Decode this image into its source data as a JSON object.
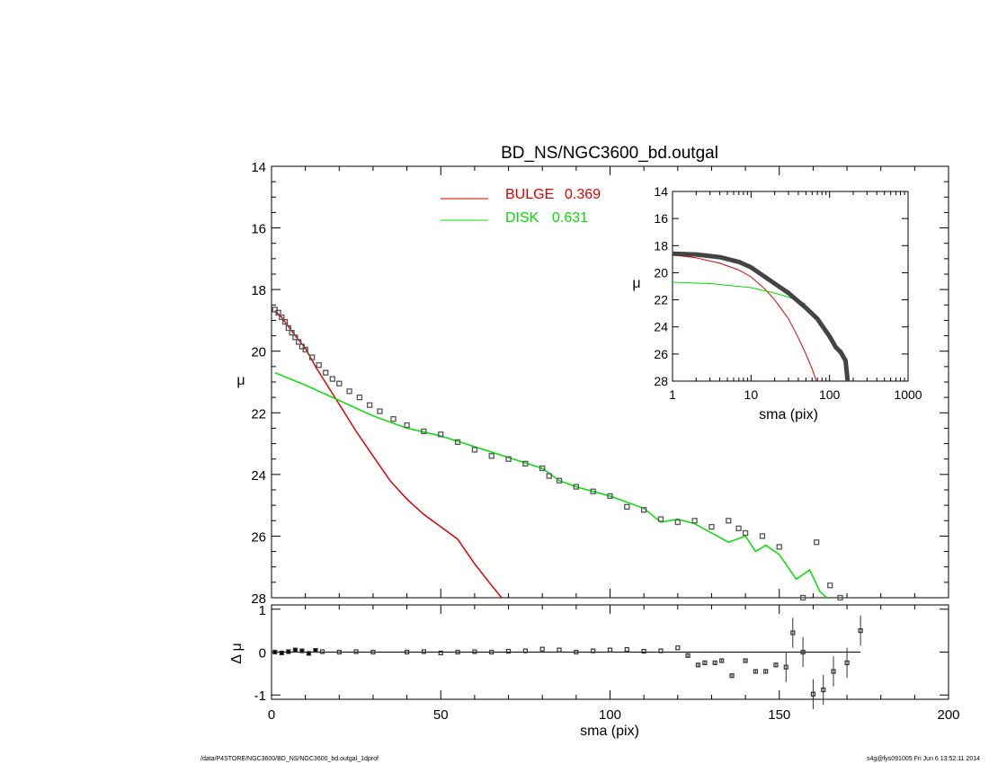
{
  "chart_data": [
    {
      "type": "line",
      "title": "BD_NS/NGC3600_bd.outgal",
      "xlabel": "",
      "ylabel": "μ",
      "xlim": [
        0,
        200
      ],
      "ylim": [
        28,
        14
      ],
      "yticks": [
        "14",
        "16",
        "18",
        "20",
        "22",
        "24",
        "26",
        "28"
      ],
      "legend": [
        {
          "label": "BULGE",
          "value": "0.369",
          "color": "#e00000"
        },
        {
          "label": "DISK",
          "value": "0.631",
          "color": "#00e000"
        }
      ],
      "series": [
        {
          "name": "BULGE",
          "color": "#e00000",
          "x": [
            1,
            3,
            5,
            7,
            10,
            13,
            17,
            21,
            25,
            30,
            35,
            40,
            45,
            50,
            55,
            60,
            65,
            68
          ],
          "y": [
            18.7,
            18.9,
            19.2,
            19.5,
            19.9,
            20.5,
            21.2,
            21.9,
            22.6,
            23.4,
            24.2,
            24.8,
            25.3,
            25.7,
            26.1,
            26.9,
            27.6,
            28.0
          ]
        },
        {
          "name": "DISK",
          "color": "#00e000",
          "x": [
            1,
            10,
            20,
            30,
            40,
            50,
            60,
            70,
            80,
            85,
            90,
            100,
            110,
            115,
            120,
            125,
            130,
            135,
            140,
            143,
            146,
            150,
            155,
            159,
            162,
            164
          ],
          "y": [
            20.7,
            21.1,
            21.6,
            22.1,
            22.5,
            22.75,
            23.1,
            23.45,
            23.8,
            24.2,
            24.4,
            24.7,
            25.1,
            25.55,
            25.45,
            25.6,
            25.9,
            26.2,
            26.0,
            26.5,
            26.3,
            26.6,
            27.4,
            27.1,
            27.8,
            28.0
          ]
        },
        {
          "name": "",
          "type": "scatter",
          "color": "#555555",
          "x": [
            1,
            2,
            3,
            4,
            5,
            6,
            7,
            8,
            9,
            10,
            12,
            14,
            16,
            18,
            20,
            23,
            26,
            29,
            32,
            36,
            40,
            45,
            50,
            55,
            60,
            65,
            70,
            75,
            80,
            82,
            85,
            90,
            95,
            100,
            105,
            110,
            115,
            120,
            125,
            130,
            135,
            138,
            140,
            145,
            150,
            157,
            161,
            165,
            168
          ],
          "y": [
            18.65,
            18.75,
            18.9,
            19.05,
            19.25,
            19.4,
            19.55,
            19.7,
            19.85,
            19.95,
            20.2,
            20.45,
            20.7,
            20.9,
            21.05,
            21.3,
            21.5,
            21.75,
            21.95,
            22.2,
            22.4,
            22.6,
            22.7,
            22.95,
            23.2,
            23.4,
            23.5,
            23.65,
            23.8,
            24.05,
            24.2,
            24.4,
            24.55,
            24.7,
            25.05,
            25.15,
            25.45,
            25.55,
            25.5,
            25.7,
            25.5,
            25.75,
            25.9,
            26.0,
            26.35,
            28.0,
            26.2,
            27.6,
            28.0
          ]
        }
      ]
    },
    {
      "type": "line",
      "xlabel": "",
      "ylabel": "μ",
      "xscale": "log",
      "xlim": [
        1,
        1000
      ],
      "ylim": [
        28,
        14
      ],
      "xticks": [
        "1",
        "10",
        "100",
        "1000"
      ],
      "yticks": [
        "14",
        "16",
        "18",
        "20",
        "22",
        "24",
        "26",
        "28"
      ],
      "series": [
        {
          "name": "BULGE",
          "color": "#e00000",
          "x": [
            1,
            2,
            4,
            7,
            10,
            15,
            20,
            30,
            40,
            50,
            60,
            68
          ],
          "y": [
            18.7,
            18.9,
            19.3,
            19.8,
            20.3,
            21.2,
            22.0,
            23.4,
            24.8,
            26.0,
            27.1,
            28.0
          ]
        },
        {
          "name": "DISK",
          "color": "#00e000",
          "x": [
            1,
            3,
            10,
            20,
            30,
            40,
            50
          ],
          "y": [
            20.7,
            20.8,
            21.1,
            21.5,
            21.8,
            22.1,
            22.3
          ]
        },
        {
          "name": "",
          "color": "#444444",
          "x": [
            1,
            2,
            4,
            7,
            10,
            15,
            20,
            30,
            50,
            70,
            100,
            120,
            140,
            160,
            170
          ],
          "y": [
            18.6,
            18.65,
            18.85,
            19.2,
            19.6,
            20.3,
            20.8,
            21.5,
            22.6,
            23.4,
            24.7,
            25.5,
            25.9,
            26.5,
            28.0
          ]
        }
      ]
    },
    {
      "type": "scatter",
      "xlabel": "sma (pix)",
      "ylabel": "Δ μ",
      "xlim": [
        0,
        200
      ],
      "ylim": [
        -1.1,
        1.1
      ],
      "xticks": [
        "0",
        "50",
        "100",
        "150",
        "200"
      ],
      "yticks": [
        "-1",
        "0",
        "1"
      ],
      "series": [
        {
          "name": "",
          "color": "#333333",
          "x": [
            1,
            3,
            5,
            7,
            9,
            11,
            13,
            15,
            20,
            25,
            30,
            40,
            45,
            50,
            55,
            60,
            65,
            70,
            75,
            80,
            85,
            90,
            95,
            100,
            105,
            110,
            115,
            120,
            123,
            126,
            128,
            131,
            133,
            136,
            140,
            143,
            146,
            149,
            152,
            154,
            157,
            160,
            163,
            166,
            170,
            174
          ],
          "y": [
            0.0,
            -0.02,
            0.01,
            0.05,
            0.03,
            -0.03,
            0.04,
            0.01,
            0.0,
            0.01,
            0.0,
            0.0,
            0.01,
            -0.02,
            0.0,
            0.01,
            0.0,
            0.02,
            0.03,
            0.07,
            0.05,
            0.0,
            0.03,
            0.05,
            0.06,
            0.02,
            0.03,
            0.1,
            -0.08,
            -0.3,
            -0.25,
            -0.25,
            -0.2,
            -0.55,
            -0.2,
            -0.45,
            -0.45,
            -0.3,
            -0.35,
            0.45,
            0.0,
            -0.98,
            -0.88,
            -0.45,
            -0.25,
            0.5
          ]
        }
      ]
    }
  ],
  "footer": {
    "left": "/data/P4STORE/NGC3600/BD_NS/NGC3600_bd.outgal_1dprof",
    "right": "s4g@fys091005  Fri Jun  6 13:52:11 2014"
  }
}
